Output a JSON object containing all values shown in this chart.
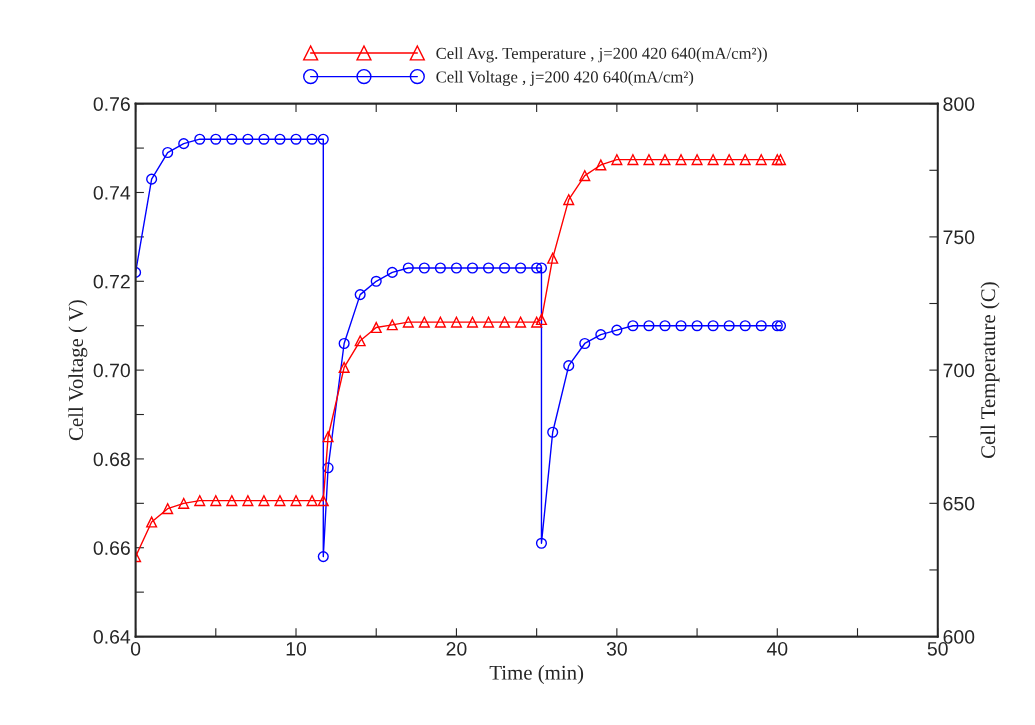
{
  "chart_data": {
    "type": "line",
    "xlabel": "Time (min)",
    "ylabel": "Cell Voltage ( V)",
    "y2label": "Cell Temperature (C)",
    "xlim": [
      0,
      50
    ],
    "xticks": [
      0,
      {
        "value": 5,
        "label": null
      },
      10,
      {
        "value": 15,
        "label": null
      },
      20,
      {
        "value": 25,
        "label": null
      },
      30,
      {
        "value": 35,
        "label": null
      },
      40,
      {
        "value": 45,
        "label": null
      },
      50
    ],
    "ylim": [
      0.64,
      0.76
    ],
    "yticks": [
      0.64,
      {
        "value": 0.65,
        "label": null
      },
      0.66,
      {
        "value": 0.67,
        "label": null
      },
      0.68,
      {
        "value": 0.69,
        "label": null
      },
      {
        "value": 0.7,
        "label": "0.70"
      },
      {
        "value": 0.71,
        "label": null
      },
      0.72,
      {
        "value": 0.73,
        "label": null
      },
      0.74,
      {
        "value": 0.75,
        "label": null
      },
      0.76
    ],
    "y2lim": [
      600,
      800
    ],
    "y2ticks": [
      600,
      {
        "value": 625,
        "label": null
      },
      650,
      {
        "value": 675,
        "label": null
      },
      700,
      {
        "value": 725,
        "label": null
      },
      750,
      {
        "value": 775,
        "label": null
      },
      800
    ],
    "grid": false,
    "legend": "top",
    "line_style": "solid",
    "series": [
      {
        "name": "Cell Avg. Temperature , j=200 420 640(mA/cm²))",
        "color": "#ff0000",
        "marker": "triangle",
        "axis": "y2",
        "x": [
          0,
          1,
          2,
          3,
          4,
          5,
          6,
          7,
          8,
          9,
          10,
          11,
          11.7,
          12,
          13,
          14,
          15,
          16,
          17,
          18,
          19,
          20,
          21,
          22,
          23,
          24,
          25,
          25.3,
          26,
          27,
          28,
          29,
          30,
          31,
          32,
          33,
          34,
          35,
          36,
          37,
          38,
          39,
          40,
          40.2
        ],
        "values": [
          630,
          643,
          648,
          650,
          651,
          651,
          651,
          651,
          651,
          651,
          651,
          651,
          651,
          675,
          701,
          711,
          716,
          717,
          718,
          718,
          718,
          718,
          718,
          718,
          718,
          718,
          718,
          719,
          742,
          764,
          773,
          777,
          779,
          779,
          779,
          779,
          779,
          779,
          779,
          779,
          779,
          779,
          779,
          779
        ]
      },
      {
        "name": "Cell Voltage , j=200 420 640(mA/cm²)",
        "color": "#0000ff",
        "marker": "circle",
        "x": [
          0,
          1,
          2,
          3,
          4,
          5,
          6,
          7,
          8,
          9,
          10,
          11,
          11.7,
          11.7,
          12,
          13,
          14,
          15,
          16,
          17,
          18,
          19,
          20,
          21,
          22,
          23,
          24,
          25,
          25.3,
          25.3,
          26,
          27,
          28,
          29,
          30,
          31,
          32,
          33,
          34,
          35,
          36,
          37,
          38,
          39,
          40,
          40.2
        ],
        "values": [
          0.722,
          0.743,
          0.749,
          0.751,
          0.752,
          0.752,
          0.752,
          0.752,
          0.752,
          0.752,
          0.752,
          0.752,
          0.752,
          0.658,
          0.678,
          0.706,
          0.717,
          0.72,
          0.722,
          0.723,
          0.723,
          0.723,
          0.723,
          0.723,
          0.723,
          0.723,
          0.723,
          0.723,
          0.723,
          0.661,
          0.686,
          0.701,
          0.706,
          0.708,
          0.709,
          0.71,
          0.71,
          0.71,
          0.71,
          0.71,
          0.71,
          0.71,
          0.71,
          0.71,
          0.71,
          0.71
        ]
      }
    ]
  }
}
